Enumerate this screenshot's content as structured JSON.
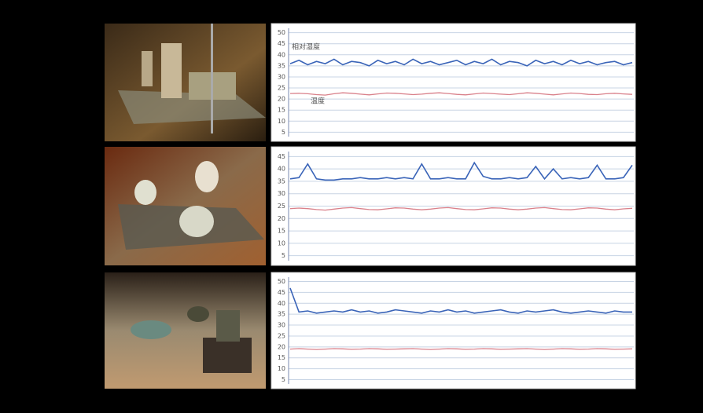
{
  "chart_data": [
    {
      "type": "line",
      "ylim": [
        3,
        52
      ],
      "yticks": [
        5,
        10,
        15,
        20,
        25,
        30,
        35,
        40,
        45,
        50
      ],
      "grid": true,
      "series": [
        {
          "name": "相对湿度",
          "color": "#3a64b8",
          "values": [
            36,
            37.5,
            35.5,
            37,
            36,
            38,
            35.5,
            37,
            36.5,
            35,
            37.5,
            36,
            37,
            35.5,
            38,
            36,
            37,
            35.5,
            36.5,
            37.5,
            35.5,
            37,
            36,
            38,
            35.5,
            37,
            36.5,
            35,
            37.5,
            36,
            37,
            35.5,
            37.5,
            36,
            37,
            35.5,
            36.5,
            37,
            35.5,
            36.5
          ]
        },
        {
          "name": "温度",
          "color": "#d9808a",
          "values": [
            22.5,
            22.6,
            22.4,
            22,
            21.8,
            22.4,
            22.8,
            22.6,
            22.2,
            21.9,
            22.3,
            22.7,
            22.6,
            22.3,
            22,
            22.2,
            22.6,
            22.8,
            22.5,
            22.1,
            21.9,
            22.3,
            22.7,
            22.5,
            22.2,
            22,
            22.4,
            22.8,
            22.6,
            22.2,
            21.9,
            22.3,
            22.7,
            22.5,
            22.1,
            22,
            22.4,
            22.6,
            22.3,
            22.1
          ]
        }
      ]
    },
    {
      "type": "line",
      "ylim": [
        3,
        47
      ],
      "yticks": [
        5,
        10,
        15,
        20,
        25,
        30,
        35,
        40,
        45
      ],
      "grid": true,
      "series": [
        {
          "color": "#3a64b8",
          "values": [
            36,
            36.5,
            42,
            36,
            35.5,
            35.5,
            36,
            36,
            36.5,
            36,
            36,
            36.5,
            36,
            36.5,
            36,
            42,
            36,
            36,
            36.5,
            36,
            36,
            42.5,
            37,
            36,
            36,
            36.5,
            36,
            36.5,
            41,
            36,
            40,
            36,
            36.5,
            36,
            36.5,
            41.5,
            36,
            36,
            36.5,
            41.5
          ]
        },
        {
          "color": "#d9808a",
          "values": [
            24,
            24.2,
            24,
            23.6,
            23.4,
            23.8,
            24.2,
            24.4,
            24,
            23.6,
            23.5,
            23.9,
            24.3,
            24.2,
            23.8,
            23.5,
            23.8,
            24.2,
            24.4,
            24,
            23.6,
            23.5,
            23.9,
            24.3,
            24.2,
            23.8,
            23.5,
            23.8,
            24.2,
            24.4,
            24,
            23.6,
            23.5,
            23.9,
            24.3,
            24.2,
            23.8,
            23.5,
            23.9,
            24.1
          ]
        }
      ]
    },
    {
      "type": "line",
      "ylim": [
        3,
        52
      ],
      "yticks": [
        5,
        10,
        15,
        20,
        25,
        30,
        35,
        40,
        45,
        50
      ],
      "grid": true,
      "series": [
        {
          "color": "#3a64b8",
          "values": [
            47,
            36,
            36.5,
            35.5,
            36,
            36.5,
            36,
            37,
            36,
            36.5,
            35.5,
            36,
            37,
            36.5,
            36,
            35.5,
            36.5,
            36,
            37,
            36,
            36.5,
            35.5,
            36,
            36.5,
            37,
            36,
            35.5,
            36.5,
            36,
            36.5,
            37,
            36,
            35.5,
            36,
            36.5,
            36,
            35.5,
            36.5,
            36,
            36
          ]
        },
        {
          "color": "#d9808a",
          "values": [
            19,
            19.2,
            19,
            18.8,
            19,
            19.2,
            19.1,
            18.9,
            19,
            19.2,
            19.1,
            18.9,
            19,
            19.1,
            19.2,
            19,
            18.8,
            19,
            19.2,
            19.1,
            18.9,
            19,
            19.2,
            19.1,
            18.9,
            19,
            19.1,
            19.2,
            19,
            18.8,
            19,
            19.2,
            19.1,
            18.9,
            19,
            19.2,
            19.1,
            18.9,
            19,
            19.1
          ]
        }
      ]
    }
  ]
}
